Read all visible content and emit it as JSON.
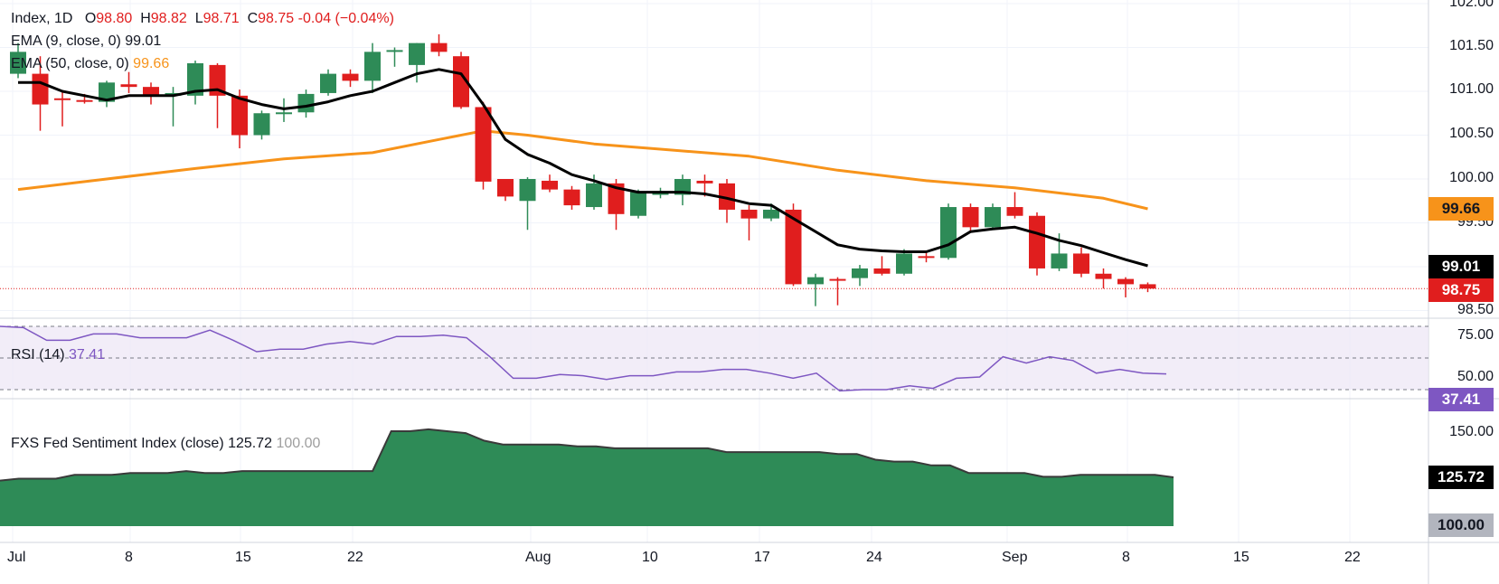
{
  "chart_data": [
    {
      "type": "candlestick",
      "title": "Index, 1D",
      "ohlc": {
        "O": "98.80",
        "H": "98.82",
        "L": "98.71",
        "C": "98.75",
        "change": "-0.04 (−0.04%)"
      },
      "indicators": [
        {
          "name": "EMA (9, close, 0)",
          "value": "99.01",
          "color": "#000000"
        },
        {
          "name": "EMA (50, close, 0)",
          "value": "99.66",
          "color": "#f7931a"
        }
      ],
      "ylim": [
        98.2,
        102.0
      ],
      "y_ticks": [
        "102.00",
        "101.50",
        "101.00",
        "100.50",
        "100.00",
        "99.50",
        "98.50"
      ],
      "x_ticks": [
        "Jul",
        "8",
        "15",
        "22",
        "Aug",
        "10",
        "17",
        "24",
        "Sep",
        "8",
        "15",
        "22"
      ],
      "last_price_line": 98.75,
      "candles": [
        {
          "o": 101.2,
          "h": 101.55,
          "l": 101.15,
          "c": 101.45
        },
        {
          "o": 101.2,
          "h": 101.4,
          "l": 100.55,
          "c": 100.85
        },
        {
          "o": 100.92,
          "h": 101.0,
          "l": 100.6,
          "c": 100.9
        },
        {
          "o": 100.9,
          "h": 100.97,
          "l": 100.86,
          "c": 100.88
        },
        {
          "o": 100.88,
          "h": 101.12,
          "l": 100.82,
          "c": 101.1
        },
        {
          "o": 101.08,
          "h": 101.22,
          "l": 100.98,
          "c": 101.05
        },
        {
          "o": 101.05,
          "h": 101.1,
          "l": 100.85,
          "c": 100.95
        },
        {
          "o": 100.95,
          "h": 101.05,
          "l": 100.6,
          "c": 100.98
        },
        {
          "o": 100.95,
          "h": 101.35,
          "l": 100.85,
          "c": 101.32
        },
        {
          "o": 101.3,
          "h": 101.32,
          "l": 100.58,
          "c": 100.95
        },
        {
          "o": 100.95,
          "h": 101.02,
          "l": 100.35,
          "c": 100.5
        },
        {
          "o": 100.5,
          "h": 100.78,
          "l": 100.45,
          "c": 100.75
        },
        {
          "o": 100.75,
          "h": 100.92,
          "l": 100.65,
          "c": 100.76
        },
        {
          "o": 100.76,
          "h": 101.02,
          "l": 100.7,
          "c": 100.97
        },
        {
          "o": 100.98,
          "h": 101.25,
          "l": 100.95,
          "c": 101.2
        },
        {
          "o": 101.2,
          "h": 101.25,
          "l": 101.05,
          "c": 101.12
        },
        {
          "o": 101.12,
          "h": 101.55,
          "l": 100.98,
          "c": 101.45
        },
        {
          "o": 101.45,
          "h": 101.5,
          "l": 101.28,
          "c": 101.47
        },
        {
          "o": 101.3,
          "h": 101.55,
          "l": 101.1,
          "c": 101.55
        },
        {
          "o": 101.55,
          "h": 101.65,
          "l": 101.4,
          "c": 101.45
        },
        {
          "o": 101.4,
          "h": 101.45,
          "l": 100.8,
          "c": 100.82
        },
        {
          "o": 100.82,
          "h": 100.88,
          "l": 99.88,
          "c": 99.97
        },
        {
          "o": 100.0,
          "h": 100.0,
          "l": 99.75,
          "c": 99.8
        },
        {
          "o": 99.75,
          "h": 100.02,
          "l": 99.42,
          "c": 100.0
        },
        {
          "o": 99.98,
          "h": 100.05,
          "l": 99.85,
          "c": 99.88
        },
        {
          "o": 99.88,
          "h": 99.92,
          "l": 99.65,
          "c": 99.7
        },
        {
          "o": 99.68,
          "h": 100.05,
          "l": 99.65,
          "c": 99.95
        },
        {
          "o": 99.95,
          "h": 100.0,
          "l": 99.42,
          "c": 99.6
        },
        {
          "o": 99.58,
          "h": 99.88,
          "l": 99.55,
          "c": 99.85
        },
        {
          "o": 99.82,
          "h": 99.9,
          "l": 99.78,
          "c": 99.84
        },
        {
          "o": 99.82,
          "h": 100.05,
          "l": 99.7,
          "c": 100.0
        },
        {
          "o": 99.98,
          "h": 100.05,
          "l": 99.8,
          "c": 99.95
        },
        {
          "o": 99.95,
          "h": 100.0,
          "l": 99.5,
          "c": 99.65
        },
        {
          "o": 99.65,
          "h": 99.7,
          "l": 99.3,
          "c": 99.55
        },
        {
          "o": 99.55,
          "h": 99.72,
          "l": 99.52,
          "c": 99.65
        },
        {
          "o": 99.65,
          "h": 99.72,
          "l": 98.78,
          "c": 98.8
        },
        {
          "o": 98.8,
          "h": 98.92,
          "l": 98.55,
          "c": 98.88
        },
        {
          "o": 98.86,
          "h": 98.88,
          "l": 98.56,
          "c": 98.85
        },
        {
          "o": 98.87,
          "h": 99.02,
          "l": 98.78,
          "c": 98.98
        },
        {
          "o": 98.98,
          "h": 99.12,
          "l": 98.9,
          "c": 98.92
        },
        {
          "o": 98.92,
          "h": 99.2,
          "l": 98.9,
          "c": 99.15
        },
        {
          "o": 99.12,
          "h": 99.16,
          "l": 99.05,
          "c": 99.1
        },
        {
          "o": 99.1,
          "h": 99.72,
          "l": 99.08,
          "c": 99.68
        },
        {
          "o": 99.68,
          "h": 99.72,
          "l": 99.4,
          "c": 99.45
        },
        {
          "o": 99.45,
          "h": 99.72,
          "l": 99.42,
          "c": 99.68
        },
        {
          "o": 99.68,
          "h": 99.85,
          "l": 99.55,
          "c": 99.58
        },
        {
          "o": 99.58,
          "h": 99.62,
          "l": 98.9,
          "c": 98.98
        },
        {
          "o": 98.98,
          "h": 99.38,
          "l": 98.95,
          "c": 99.15
        },
        {
          "o": 99.15,
          "h": 99.22,
          "l": 98.88,
          "c": 98.92
        },
        {
          "o": 98.92,
          "h": 98.98,
          "l": 98.75,
          "c": 98.86
        },
        {
          "o": 98.86,
          "h": 98.88,
          "l": 98.65,
          "c": 98.8
        },
        {
          "o": 98.8,
          "h": 98.82,
          "l": 98.71,
          "c": 98.75
        }
      ],
      "ema9": [
        101.1,
        101.1,
        101.0,
        100.95,
        100.9,
        100.95,
        100.95,
        100.95,
        101.0,
        101.02,
        100.92,
        100.85,
        100.8,
        100.83,
        100.88,
        100.95,
        101.0,
        101.1,
        101.2,
        101.25,
        101.2,
        100.85,
        100.45,
        100.28,
        100.18,
        100.05,
        99.98,
        99.9,
        99.85,
        99.85,
        99.85,
        99.83,
        99.78,
        99.72,
        99.7,
        99.55,
        99.4,
        99.25,
        99.2,
        99.18,
        99.17,
        99.17,
        99.25,
        99.4,
        99.43,
        99.45,
        99.38,
        99.3,
        99.24,
        99.16,
        99.08,
        99.01
      ],
      "ema50_pts": [
        [
          0,
          99.88
        ],
        [
          4,
          100.0
        ],
        [
          8,
          100.12
        ],
        [
          12,
          100.23
        ],
        [
          16,
          100.3
        ],
        [
          19,
          100.45
        ],
        [
          21,
          100.55
        ],
        [
          23,
          100.5
        ],
        [
          26,
          100.4
        ],
        [
          29,
          100.34
        ],
        [
          33,
          100.26
        ],
        [
          37,
          100.1
        ],
        [
          41,
          99.98
        ],
        [
          45,
          99.9
        ],
        [
          49,
          99.78
        ],
        [
          51,
          99.66
        ]
      ],
      "current": {
        "ema9": "99.01",
        "ema50": "99.66",
        "close": "98.75"
      }
    },
    {
      "type": "line",
      "title": "RSI (14)",
      "value": "37.41",
      "ylim": [
        25,
        75
      ],
      "y_ticks": [
        "75.00",
        "50.00"
      ],
      "levels": [
        75,
        50,
        25
      ],
      "values": [
        75,
        74,
        64,
        64,
        69,
        69,
        66,
        66,
        66,
        72,
        64,
        55,
        57,
        57,
        61,
        63,
        61,
        67,
        67,
        68,
        66,
        51,
        34,
        34,
        37,
        36,
        33,
        36,
        36,
        39,
        39,
        41,
        41,
        38,
        34,
        38,
        24,
        25,
        25,
        28,
        26,
        34,
        35,
        51,
        46,
        51,
        48,
        38,
        41,
        38,
        37.41
      ]
    },
    {
      "type": "area",
      "title": "FXS Fed Sentiment Index (close)",
      "value": "125.72",
      "secondary_value": "100.00",
      "ylim": [
        100,
        155
      ],
      "y_ticks": [
        "150.00"
      ],
      "values": [
        124,
        125,
        125,
        125,
        127,
        127,
        127,
        128,
        128,
        128,
        129,
        128,
        128,
        129,
        129,
        129,
        129,
        129,
        129,
        129,
        129,
        150,
        150,
        151,
        150,
        149,
        145,
        143,
        143,
        143,
        143,
        142,
        142,
        141,
        141,
        141,
        141,
        141,
        141,
        139,
        139,
        139,
        139,
        139,
        139,
        138,
        138,
        135,
        134,
        134,
        132,
        132,
        128,
        128,
        128,
        128,
        126,
        126,
        127,
        127,
        127,
        127,
        127,
        125.72
      ]
    }
  ]
}
